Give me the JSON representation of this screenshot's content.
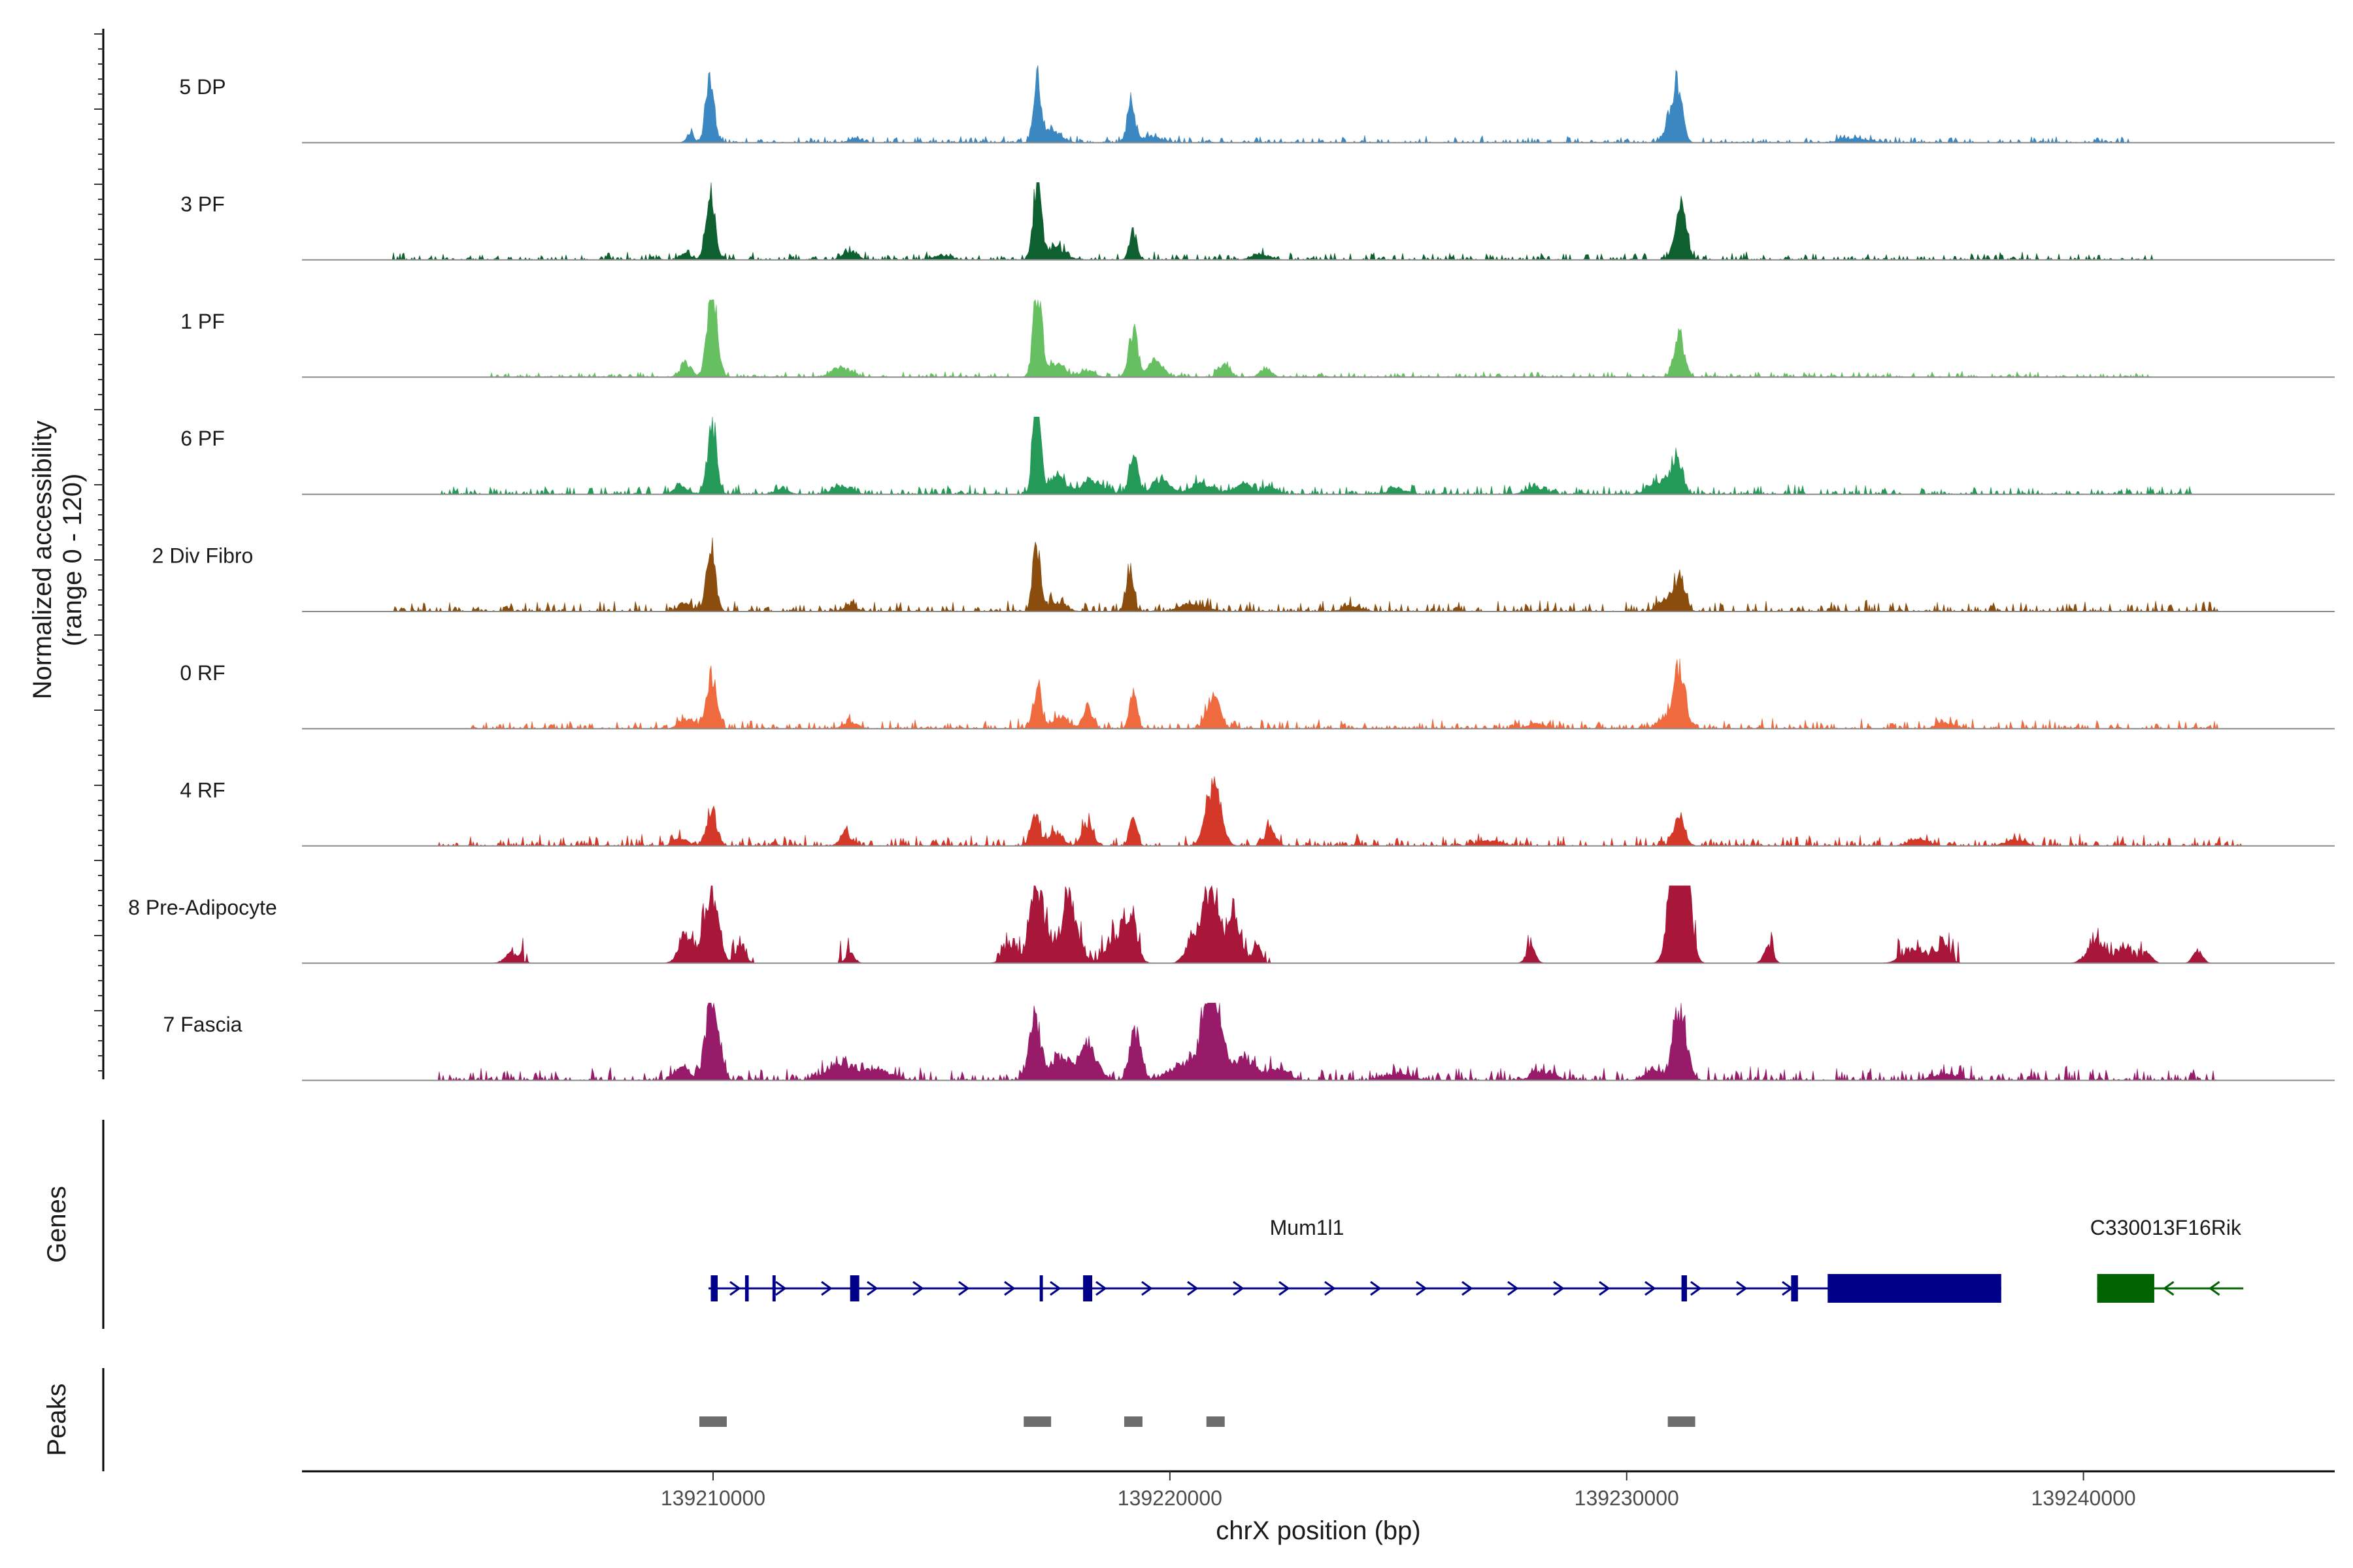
{
  "chart_data": {
    "type": "coverage",
    "y_axis_title": "Normalized accessibility",
    "y_axis_subtitle": "(range 0 - 120)",
    "ylim": [
      0,
      120
    ],
    "xlabel": "chrX position (bp)",
    "xlim": [
      139201000,
      139245500
    ],
    "x_ticks": [
      139210000,
      139220000,
      139230000,
      139240000
    ],
    "x_tick_labels": [
      "139210000",
      "139220000",
      "139230000",
      "139240000"
    ],
    "tracks": [
      {
        "name": "5 DP",
        "color": "#3a87c2",
        "noise": 0.025,
        "seed": 11,
        "regions": [
          [
            139209500,
            139241000
          ],
          [
            139219000,
            139231500
          ]
        ],
        "peaks": [
          [
            139209930,
            100,
            90
          ],
          [
            139209500,
            15,
            80
          ],
          [
            139213100,
            8,
            120
          ],
          [
            139217100,
            95,
            80
          ],
          [
            139217400,
            20,
            200
          ],
          [
            139219150,
            70,
            80
          ],
          [
            139219600,
            10,
            200
          ],
          [
            139231100,
            90,
            110
          ],
          [
            139230900,
            20,
            110
          ],
          [
            139235000,
            6,
            300
          ]
        ]
      },
      {
        "name": "3 PF",
        "color": "#0f6030",
        "noise": 0.03,
        "seed": 23,
        "regions": [
          [
            139203000,
            139241500
          ]
        ],
        "peaks": [
          [
            139209950,
            100,
            100
          ],
          [
            139209400,
            10,
            120
          ],
          [
            139213000,
            12,
            150
          ],
          [
            139217100,
            120,
            90
          ],
          [
            139217500,
            20,
            200
          ],
          [
            139219200,
            45,
            80
          ],
          [
            139231180,
            80,
            120
          ],
          [
            139215000,
            6,
            200
          ],
          [
            139222000,
            8,
            200
          ]
        ]
      },
      {
        "name": "1 PF",
        "color": "#66bf60",
        "noise": 0.02,
        "seed": 37,
        "regions": [
          [
            139205000,
            139241500
          ]
        ],
        "peaks": [
          [
            139209980,
            130,
            110
          ],
          [
            139209400,
            20,
            120
          ],
          [
            139212800,
            15,
            200
          ],
          [
            139217100,
            130,
            90
          ],
          [
            139217500,
            20,
            200
          ],
          [
            139218200,
            10,
            150
          ],
          [
            139219200,
            70,
            100
          ],
          [
            139219700,
            25,
            150
          ],
          [
            139221200,
            18,
            120
          ],
          [
            139222100,
            14,
            120
          ],
          [
            139231150,
            65,
            110
          ]
        ]
      },
      {
        "name": "6 PF",
        "color": "#259a58",
        "noise": 0.035,
        "seed": 41,
        "regions": [
          [
            139204000,
            139242500
          ]
        ],
        "peaks": [
          [
            139209980,
            110,
            100
          ],
          [
            139209300,
            12,
            150
          ],
          [
            139211500,
            8,
            150
          ],
          [
            139212800,
            12,
            200
          ],
          [
            139217080,
            160,
            80
          ],
          [
            139217500,
            30,
            180
          ],
          [
            139218300,
            20,
            250
          ],
          [
            139219200,
            70,
            90
          ],
          [
            139219800,
            20,
            200
          ],
          [
            139220700,
            15,
            250
          ],
          [
            139221600,
            15,
            200
          ],
          [
            139222200,
            12,
            150
          ],
          [
            139231100,
            60,
            120
          ],
          [
            139230700,
            20,
            200
          ],
          [
            139225000,
            8,
            200
          ],
          [
            139228000,
            10,
            200
          ]
        ]
      },
      {
        "name": "2 Div Fibro",
        "color": "#8a4d0e",
        "noise": 0.04,
        "seed": 53,
        "regions": [
          [
            139203000,
            139243000
          ]
        ],
        "peaks": [
          [
            139209950,
            95,
            100
          ],
          [
            139209400,
            12,
            150
          ],
          [
            139213000,
            8,
            150
          ],
          [
            139217080,
            100,
            80
          ],
          [
            139217500,
            15,
            200
          ],
          [
            139219120,
            65,
            80
          ],
          [
            139231150,
            55,
            120
          ],
          [
            139230800,
            15,
            150
          ],
          [
            139220500,
            10,
            300
          ],
          [
            139224000,
            8,
            200
          ]
        ]
      },
      {
        "name": "0 RF",
        "color": "#ef6a3f",
        "noise": 0.035,
        "seed": 67,
        "regions": [
          [
            139204500,
            139243000
          ]
        ],
        "peaks": [
          [
            139209970,
            80,
            110
          ],
          [
            139209400,
            15,
            150
          ],
          [
            139213000,
            10,
            150
          ],
          [
            139217100,
            60,
            90
          ],
          [
            139217600,
            15,
            200
          ],
          [
            139218200,
            35,
            100
          ],
          [
            139219200,
            60,
            80
          ],
          [
            139220950,
            50,
            140
          ],
          [
            139231150,
            90,
            120
          ],
          [
            139230900,
            15,
            200
          ],
          [
            139228000,
            8,
            200
          ],
          [
            139237000,
            8,
            200
          ]
        ]
      },
      {
        "name": "4 RF",
        "color": "#d33828",
        "noise": 0.04,
        "seed": 79,
        "regions": [
          [
            139204000,
            139243500
          ]
        ],
        "peaks": [
          [
            139209970,
            55,
            110
          ],
          [
            139212900,
            20,
            120
          ],
          [
            139209300,
            12,
            150
          ],
          [
            139217050,
            45,
            100
          ],
          [
            139217500,
            20,
            150
          ],
          [
            139218200,
            35,
            120
          ],
          [
            139219200,
            45,
            80
          ],
          [
            139220950,
            95,
            160
          ],
          [
            139222200,
            25,
            120
          ],
          [
            139231150,
            45,
            120
          ],
          [
            139236400,
            12,
            200
          ],
          [
            139238500,
            10,
            200
          ],
          [
            139227000,
            8,
            250
          ]
        ]
      },
      {
        "name": "8 Pre-Adipocyte",
        "color": "#a81639",
        "noise": 0.08,
        "seed": 89,
        "regions": [
          [
            139205500,
            139206000
          ],
          [
            139209200,
            139210900
          ],
          [
            139212700,
            139213000
          ],
          [
            139216200,
            139219400
          ],
          [
            139220600,
            139222200
          ],
          [
            139227800,
            139227960
          ],
          [
            139230800,
            139231600
          ],
          [
            139233100,
            139233250
          ],
          [
            139235900,
            139237300
          ],
          [
            139239900,
            139241500
          ],
          [
            139242400,
            139242550
          ]
        ],
        "peaks": [
          [
            139209950,
            110,
            150
          ],
          [
            139217100,
            120,
            150
          ],
          [
            139217800,
            95,
            180
          ],
          [
            139219100,
            80,
            150
          ],
          [
            139220900,
            120,
            160
          ],
          [
            139221400,
            60,
            150
          ],
          [
            139231150,
            330,
            160
          ],
          [
            139209400,
            40,
            150
          ],
          [
            139210600,
            30,
            100
          ],
          [
            139216500,
            25,
            150
          ],
          [
            139213000,
            15,
            100
          ],
          [
            139218700,
            30,
            150
          ],
          [
            139220500,
            40,
            150
          ],
          [
            139221900,
            25,
            100
          ],
          [
            139227900,
            25,
            100
          ],
          [
            139233100,
            25,
            100
          ],
          [
            139236300,
            20,
            250
          ],
          [
            139236900,
            25,
            150
          ],
          [
            139240300,
            35,
            200
          ],
          [
            139240900,
            25,
            150
          ],
          [
            139241400,
            20,
            100
          ],
          [
            139242500,
            20,
            100
          ],
          [
            139205600,
            15,
            150
          ]
        ]
      },
      {
        "name": "7 Fascia",
        "color": "#981b6a",
        "noise": 0.05,
        "seed": 97,
        "regions": [
          [
            139204000,
            139243000
          ]
        ],
        "peaks": [
          [
            139209980,
            130,
            140
          ],
          [
            139209300,
            20,
            150
          ],
          [
            139212800,
            25,
            300
          ],
          [
            139213600,
            15,
            300
          ],
          [
            139217050,
            90,
            130
          ],
          [
            139217600,
            35,
            200
          ],
          [
            139218200,
            55,
            200
          ],
          [
            139219250,
            75,
            120
          ],
          [
            139220300,
            25,
            300
          ],
          [
            139220900,
            170,
            180
          ],
          [
            139221600,
            35,
            300
          ],
          [
            139222400,
            15,
            200
          ],
          [
            139231170,
            110,
            140
          ],
          [
            139230600,
            15,
            200
          ],
          [
            139225000,
            10,
            300
          ],
          [
            139228200,
            12,
            250
          ],
          [
            139237000,
            10,
            300
          ]
        ]
      }
    ],
    "genes_label": "Genes",
    "genes": [
      {
        "name": "Mum1l1",
        "strand": "+",
        "color": "#000089",
        "start": 139209900,
        "end": 139238200,
        "exons": [
          [
            139209950,
            139210100
          ],
          [
            139210700,
            139210780
          ],
          [
            139211300,
            139211370
          ],
          [
            139213000,
            139213200
          ],
          [
            139217150,
            139217220
          ],
          [
            139218100,
            139218300
          ],
          [
            139231200,
            139231320
          ],
          [
            139233600,
            139233750
          ],
          [
            139234400,
            139238200
          ]
        ]
      },
      {
        "name": "C330013F16Rik",
        "strand": "-",
        "color": "#016301",
        "start": 139240300,
        "end": 139243500,
        "exons": [
          [
            139240300,
            139241550
          ]
        ]
      }
    ],
    "peaks_label": "Peaks",
    "peak_color": "#6c6c6c",
    "peak_regions": [
      [
        139209700,
        139210300
      ],
      [
        139216800,
        139217400
      ],
      [
        139219000,
        139219400
      ],
      [
        139220800,
        139221200
      ],
      [
        139230900,
        139231500
      ]
    ]
  }
}
